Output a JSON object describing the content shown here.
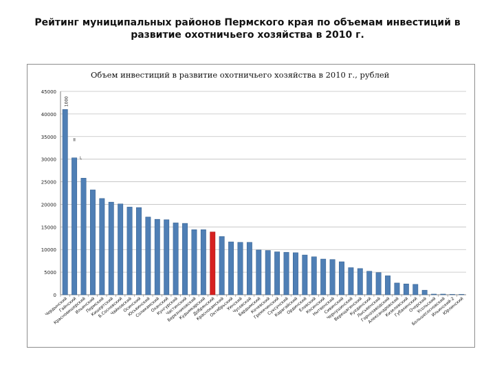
{
  "slide": {
    "title_line1": "Рейтинг муниципальных районов  Пермского края по объемам инвестиций в",
    "title_line2": "развитие охотничьего хозяйства в 2010 г."
  },
  "chart_data": {
    "type": "bar",
    "title": "Объем инвестиций в развитие охотничьего хозяйства в 2010 г., рублей",
    "xlabel": "",
    "ylabel": "",
    "ylim": [
      0,
      45000
    ],
    "yticks": [
      0,
      5000,
      10000,
      15000,
      20000,
      25000,
      30000,
      35000,
      40000,
      45000
    ],
    "ytick_labels": [
      "0",
      "5000",
      "10000",
      "15000",
      "20000",
      "25000",
      "30000",
      "35000",
      "40000",
      "45000"
    ],
    "grid": true,
    "legend": "none",
    "colors": {
      "bar": "#4f7fb5",
      "bar_edge": "#2f5a8a",
      "highlight": "#d62020",
      "grid": "#bfbfbf"
    },
    "highlight_index": 16,
    "categories": [
      "Чердынский",
      "Гайнский",
      "Красновишерский",
      "Ильинский",
      "Пермский",
      "Кишертский",
      "Б.Сосновский",
      "Чайковский",
      "Осинский",
      "Юсьвинский",
      "Соликамский",
      "Оханский",
      "Кунгурский",
      "Частинский",
      "Березниковский",
      "Кудымкарский",
      "Добрянский",
      "Краснокамский",
      "Октябрьский",
      "Уинский",
      "Чусовской",
      "Бардымский",
      "Кочевский",
      "Гремячинский",
      "Суксунский",
      "Карагайский",
      "Ординский",
      "Еловский",
      "Косинский",
      "Нытвенский",
      "Сивинский",
      "Чернушинский",
      "Верещагинский",
      "Куединский",
      "Лысьвенский",
      "Горнозаводский",
      "Александровский",
      "Кизеловский",
      "Губахинский",
      "Очерский",
      "Усольский",
      "Большесосновский",
      "Ильинский-2",
      "Юрлинский"
    ],
    "values": [
      41000,
      30300,
      25800,
      23200,
      21300,
      20500,
      20100,
      19400,
      19300,
      17200,
      16700,
      16600,
      15900,
      15800,
      14400,
      14400,
      13900,
      12900,
      11700,
      11600,
      11600,
      9900,
      9800,
      9500,
      9400,
      9300,
      8800,
      8400,
      7900,
      7800,
      7300,
      6000,
      5800,
      5200,
      4900,
      4200,
      2600,
      2400,
      2300,
      1000,
      150,
      100,
      0,
      0
    ],
    "annotations": [
      "1000",
      "II",
      "L"
    ]
  }
}
